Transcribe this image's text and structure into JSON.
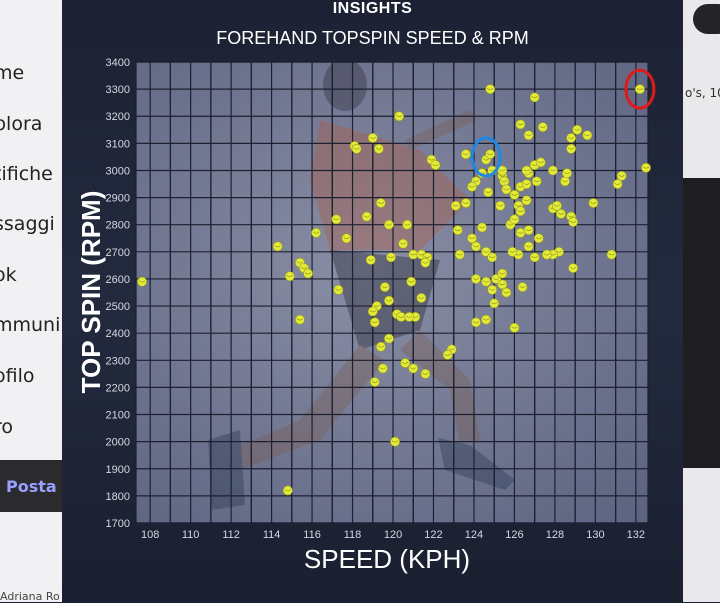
{
  "background": {
    "left_nav": [
      "me",
      "plora",
      "tifiche",
      "ssaggi",
      "ok",
      "mmuni",
      "ofilo",
      "ro"
    ],
    "left_posta": "Posta",
    "right_text": "o's, 10",
    "footer_text": "Adriana Ro"
  },
  "colors": {
    "panel_bg": "#1f2536",
    "plot_bg": "#6f7690",
    "grid": "#1c2030",
    "ball": "#e3ea3a",
    "blue_circle": "#1e88e5",
    "red_circle": "#e01919"
  },
  "chart_data": {
    "type": "scatter",
    "title": "INSIGHTS",
    "subtitle": "FOREHAND TOPSPIN SPEED & RPM",
    "xlabel": "SPEED (KPH)",
    "ylabel": "TOP SPIN (RPM)",
    "xlim": [
      107.3,
      132.6
    ],
    "ylim": [
      1700,
      3400
    ],
    "xticks": [
      "108",
      "110",
      "112",
      "114",
      "116",
      "118",
      "120",
      "122",
      "124",
      "126",
      "128",
      "130",
      "132"
    ],
    "yticks": [
      "1700",
      "1800",
      "1900",
      "2000",
      "2100",
      "2200",
      "2300",
      "2400",
      "2500",
      "2600",
      "2700",
      "2800",
      "2900",
      "3000",
      "3100",
      "3200",
      "3300",
      "3400"
    ],
    "grid": true,
    "points": [
      [
        107.6,
        2590
      ],
      [
        114.8,
        1820
      ],
      [
        114.3,
        2720
      ],
      [
        114.9,
        2610
      ],
      [
        115.4,
        2660
      ],
      [
        115.6,
        2640
      ],
      [
        115.8,
        2620
      ],
      [
        115.4,
        2450
      ],
      [
        116.2,
        2770
      ],
      [
        117.2,
        2820
      ],
      [
        117.3,
        2560
      ],
      [
        117.7,
        2750
      ],
      [
        118.1,
        3090
      ],
      [
        119.0,
        3120
      ],
      [
        119.3,
        3080
      ],
      [
        118.7,
        2830
      ],
      [
        118.9,
        2670
      ],
      [
        119.4,
        2880
      ],
      [
        119.9,
        2680
      ],
      [
        119.8,
        2800
      ],
      [
        119.6,
        2570
      ],
      [
        119.8,
        2520
      ],
      [
        120.2,
        2470
      ],
      [
        120.1,
        2000
      ],
      [
        120.3,
        3200
      ],
      [
        120.5,
        2730
      ],
      [
        120.7,
        2800
      ],
      [
        120.9,
        2590
      ],
      [
        121.0,
        2690
      ],
      [
        121.4,
        2690
      ],
      [
        121.7,
        2680
      ],
      [
        121.6,
        2660
      ],
      [
        121.4,
        2530
      ],
      [
        121.1,
        2460
      ],
      [
        121.6,
        2250
      ],
      [
        121.9,
        3040
      ],
      [
        122.1,
        3020
      ],
      [
        122.9,
        2340
      ],
      [
        122.7,
        2320
      ],
      [
        123.6,
        3060
      ],
      [
        123.9,
        2750
      ],
      [
        124.1,
        2720
      ],
      [
        124.1,
        2440
      ],
      [
        124.6,
        2450
      ],
      [
        124.4,
        2790
      ],
      [
        124.6,
        2700
      ],
      [
        124.9,
        2680
      ],
      [
        124.1,
        2600
      ],
      [
        124.6,
        2590
      ],
      [
        124.9,
        2560
      ],
      [
        125.0,
        2510
      ],
      [
        125.1,
        2600
      ],
      [
        125.4,
        2580
      ],
      [
        125.6,
        2550
      ],
      [
        125.4,
        2620
      ],
      [
        124.8,
        3300
      ],
      [
        125.4,
        2980
      ],
      [
        125.5,
        2960
      ],
      [
        125.6,
        2930
      ],
      [
        125.4,
        3000
      ],
      [
        124.9,
        3000
      ],
      [
        124.6,
        3040
      ],
      [
        124.8,
        3060
      ],
      [
        124.4,
        2990
      ],
      [
        124.1,
        2960
      ],
      [
        123.9,
        2940
      ],
      [
        124.7,
        2920
      ],
      [
        123.6,
        2880
      ],
      [
        123.1,
        2870
      ],
      [
        123.2,
        2780
      ],
      [
        123.3,
        2690
      ],
      [
        125.8,
        2800
      ],
      [
        126.0,
        2820
      ],
      [
        126.3,
        2770
      ],
      [
        126.7,
        2780
      ],
      [
        126.0,
        2910
      ],
      [
        126.3,
        2940
      ],
      [
        126.6,
        2950
      ],
      [
        126.7,
        2990
      ],
      [
        126.6,
        3000
      ],
      [
        127.0,
        3020
      ],
      [
        127.3,
        3030
      ],
      [
        127.1,
        2960
      ],
      [
        126.6,
        2890
      ],
      [
        126.2,
        2870
      ],
      [
        126.3,
        2850
      ],
      [
        126.3,
        3170
      ],
      [
        126.7,
        3130
      ],
      [
        127.0,
        3270
      ],
      [
        127.4,
        3160
      ],
      [
        127.2,
        2750
      ],
      [
        127.0,
        2680
      ],
      [
        126.7,
        2720
      ],
      [
        126.2,
        2690
      ],
      [
        126.4,
        2570
      ],
      [
        125.9,
        2700
      ],
      [
        125.3,
        2870
      ],
      [
        126.0,
        2420
      ],
      [
        127.9,
        2860
      ],
      [
        128.1,
        2870
      ],
      [
        128.3,
        2840
      ],
      [
        128.2,
        2700
      ],
      [
        127.9,
        2690
      ],
      [
        127.6,
        2690
      ],
      [
        127.9,
        3000
      ],
      [
        128.5,
        2960
      ],
      [
        128.6,
        2990
      ],
      [
        128.8,
        3080
      ],
      [
        128.8,
        3120
      ],
      [
        129.1,
        3150
      ],
      [
        128.8,
        2830
      ],
      [
        128.9,
        2810
      ],
      [
        128.9,
        2640
      ],
      [
        129.6,
        3130
      ],
      [
        129.9,
        2880
      ],
      [
        130.8,
        2690
      ],
      [
        131.1,
        2950
      ],
      [
        131.3,
        2980
      ],
      [
        132.5,
        3010
      ],
      [
        132.2,
        3300
      ],
      [
        119.1,
        2440
      ],
      [
        119.4,
        2350
      ],
      [
        119.8,
        2380
      ],
      [
        119.5,
        2270
      ],
      [
        119.1,
        2220
      ],
      [
        120.4,
        2460
      ],
      [
        120.8,
        2460
      ],
      [
        119.2,
        2500
      ],
      [
        119.0,
        2480
      ],
      [
        120.6,
        2290
      ],
      [
        121.0,
        2270
      ],
      [
        118.2,
        3080
      ]
    ],
    "highlight_blue": [
      124.6,
      3050
    ],
    "highlight_red": [
      132.2,
      3300
    ]
  }
}
